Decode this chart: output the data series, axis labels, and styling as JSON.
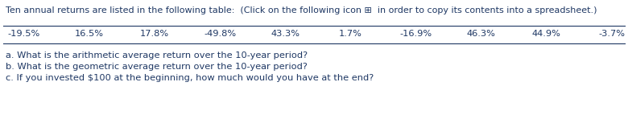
{
  "title_text": "Ten annual returns are listed in the following table:  (Click on the following icon ⊞  in order to copy its contents into a spreadsheet.)",
  "returns": [
    "-19.5%",
    "16.5%",
    "17.8%",
    "-49.8%",
    "43.3%",
    "1.7%",
    "-16.9%",
    "46.3%",
    "44.9%",
    "-3.7%"
  ],
  "questions": [
    "a. What is the arithmetic average return over the 10-year period?",
    "b. What is the geometric average return over the 10-year period?",
    "c. If you invested $100 at the beginning, how much would you have at the end?"
  ],
  "bold_questions": [
    false,
    false,
    false
  ],
  "bg_color": "#ffffff",
  "text_color": "#1f3864",
  "title_fontsize": 8.0,
  "data_fontsize": 8.2,
  "question_fontsize": 8.2,
  "fig_width": 7.8,
  "fig_height": 1.43,
  "dpi": 100
}
